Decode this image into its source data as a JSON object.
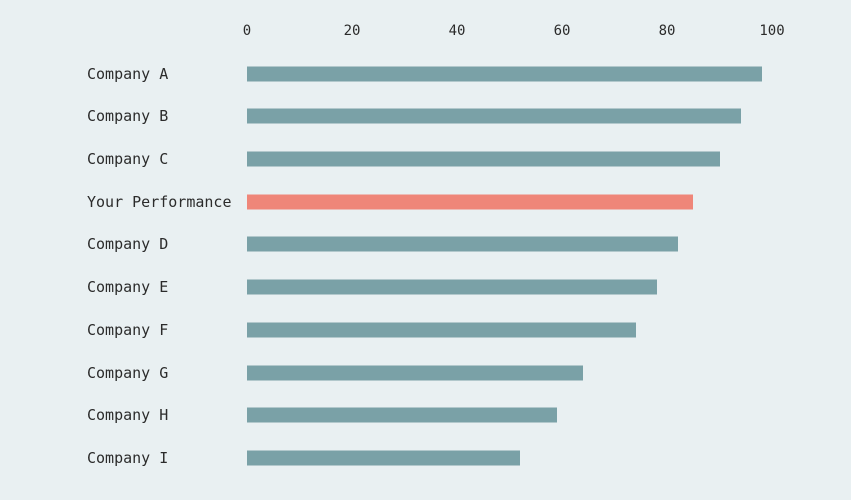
{
  "chart_data": {
    "type": "bar",
    "orientation": "horizontal",
    "title": "",
    "xlabel": "",
    "ylabel": "",
    "xlim": [
      0,
      100
    ],
    "x_ticks": [
      0,
      20,
      40,
      60,
      80,
      100
    ],
    "axis_position": "top",
    "grid": false,
    "legend": false,
    "categories": [
      "Company A",
      "Company B",
      "Company C",
      "Your Performance",
      "Company D",
      "Company E",
      "Company F",
      "Company G",
      "Company H",
      "Company I"
    ],
    "values": [
      98,
      94,
      90,
      85,
      82,
      78,
      74,
      64,
      59,
      52
    ],
    "highlighted_category": "Your Performance",
    "highlighted_index": 3,
    "colors": {
      "bar": "#7aa1a7",
      "highlight": "#ef8679",
      "background": "#e9f0f2",
      "text": "#2b2b2b"
    }
  }
}
